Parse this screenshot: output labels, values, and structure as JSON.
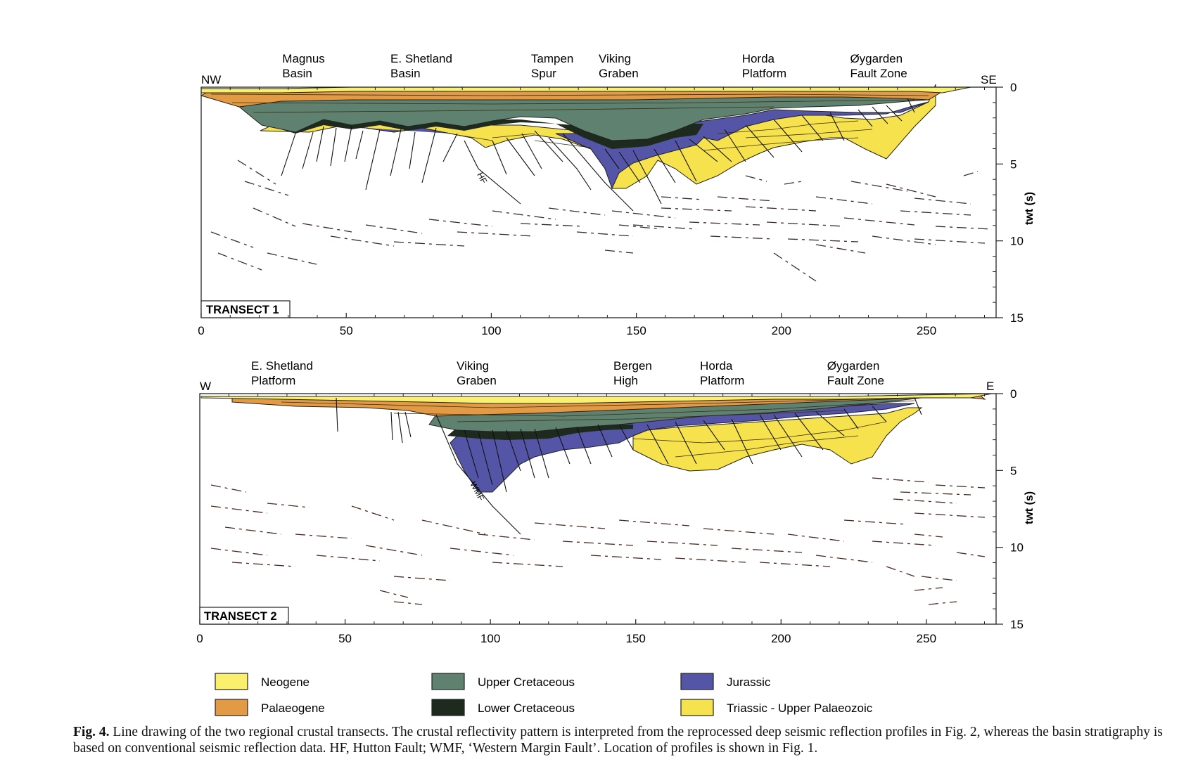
{
  "colors": {
    "neogene": "#fbf06e",
    "palaeogene": "#e39a45",
    "upper_cretaceous": "#5f8270",
    "lower_cretaceous": "#1e2a1e",
    "jurassic": "#5555a8",
    "triassic_upper_palaeozoic": "#f6e24c",
    "deep_reflector": "#4a2a22"
  },
  "transect1": {
    "label": "TRANSECT 1",
    "left_end": "NW",
    "right_end": "SE",
    "places": [
      {
        "line1": "Magnus",
        "line2": "Basin",
        "x": 30
      },
      {
        "line1": "E. Shetland",
        "line2": "Basin",
        "x": 70
      },
      {
        "line1": "Tampen",
        "line2": "Spur",
        "x": 122
      },
      {
        "line1": "Viking",
        "line2": "Graben",
        "x": 147
      },
      {
        "line1": "Horda",
        "line2": "Platform",
        "x": 200
      },
      {
        "line1": "Øygarden",
        "line2": "Fault Zone",
        "x": 240
      }
    ],
    "fault_label": "HF",
    "x_ticks": [
      "0",
      "50",
      "100",
      "150",
      "200",
      "250"
    ],
    "y_ticks": [
      "0",
      "5",
      "10",
      "15"
    ],
    "y_label": "twt (s)"
  },
  "transect2": {
    "label": "TRANSECT 2",
    "left_end": "W",
    "right_end": "E",
    "places": [
      {
        "line1": "E. Shetland",
        "line2": "Platform",
        "x": 19
      },
      {
        "line1": "Viking",
        "line2": "Graben",
        "x": 95
      },
      {
        "line1": "Bergen",
        "line2": "High",
        "x": 153
      },
      {
        "line1": "Horda",
        "line2": "Platform",
        "x": 185
      },
      {
        "line1": "Øygarden",
        "line2": "Fault Zone",
        "x": 232
      }
    ],
    "fault_label": "WMF",
    "x_ticks": [
      "0",
      "50",
      "100",
      "150",
      "200",
      "250"
    ],
    "y_ticks": [
      "0",
      "5",
      "10",
      "15"
    ],
    "y_label": "twt (s)"
  },
  "legend": [
    {
      "label": "Neogene",
      "color": "#fbf06e"
    },
    {
      "label": "Palaeogene",
      "color": "#e39a45"
    },
    {
      "label": "Upper Cretaceous",
      "color": "#5f8270"
    },
    {
      "label": "Lower Cretaceous",
      "color": "#1e2a1e"
    },
    {
      "label": "Jurassic",
      "color": "#5555a8"
    },
    {
      "label": "Triassic - Upper Palaeozoic",
      "color": "#f6e24c"
    }
  ],
  "caption": {
    "label": "Fig. 4.",
    "text": "Line drawing of the two regional crustal transects. The crustal reflectivity pattern is interpreted from the reprocessed deep seismic reflection profiles in Fig. 2, whereas the basin stratigraphy is based on conventional seismic reflection data. HF, Hutton Fault; WMF, ‘Western Margin Fault’. Location of profiles is shown in Fig. 1."
  }
}
